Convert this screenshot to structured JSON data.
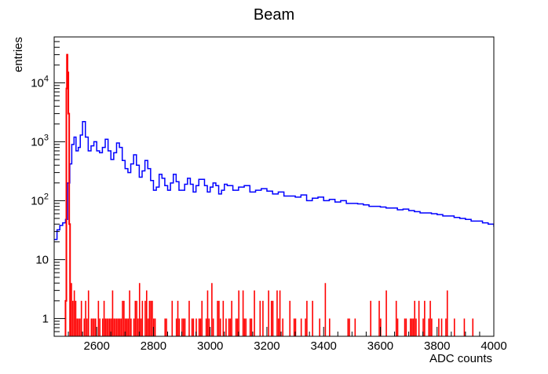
{
  "chart_data": {
    "type": "histogram",
    "title": "Beam",
    "xlabel": "ADC counts",
    "ylabel": "entries",
    "xlim": [
      2450,
      4000
    ],
    "ylim": [
      0.5,
      60000
    ],
    "y_scale": "log",
    "x_ticks": [
      {
        "value": 2600,
        "label": "2600"
      },
      {
        "value": 2800,
        "label": "2800"
      },
      {
        "value": 3000,
        "label": "3000"
      },
      {
        "value": 3200,
        "label": "3200"
      },
      {
        "value": 3400,
        "label": "3400"
      },
      {
        "value": 3600,
        "label": "3600"
      },
      {
        "value": 3800,
        "label": "3800"
      },
      {
        "value": 4000,
        "label": "4000"
      }
    ],
    "y_ticks": [
      {
        "value": 1,
        "base": "1",
        "exp": ""
      },
      {
        "value": 10,
        "base": "10",
        "exp": ""
      },
      {
        "value": 100,
        "base": "10",
        "exp": "2"
      },
      {
        "value": 1000,
        "base": "10",
        "exp": "3"
      },
      {
        "value": 10000,
        "base": "10",
        "exp": "4"
      }
    ],
    "grid": false,
    "legend": "none",
    "series": [
      {
        "color": "#0000ff",
        "style": "step",
        "x": [
          2450,
          2460,
          2470,
          2480,
          2490,
          2497,
          2505,
          2512,
          2520,
          2527,
          2535,
          2542,
          2550,
          2560,
          2570,
          2580,
          2590,
          2600,
          2610,
          2620,
          2630,
          2640,
          2650,
          2660,
          2670,
          2680,
          2690,
          2700,
          2710,
          2720,
          2730,
          2740,
          2750,
          2760,
          2770,
          2780,
          2790,
          2800,
          2810,
          2820,
          2830,
          2840,
          2850,
          2860,
          2870,
          2880,
          2890,
          2900,
          2910,
          2920,
          2930,
          2940,
          2950,
          2960,
          2970,
          2980,
          2990,
          3000,
          3010,
          3020,
          3030,
          3040,
          3050,
          3060,
          3080,
          3100,
          3120,
          3140,
          3160,
          3180,
          3200,
          3220,
          3240,
          3260,
          3280,
          3300,
          3320,
          3340,
          3360,
          3380,
          3400,
          3420,
          3440,
          3460,
          3480,
          3500,
          3520,
          3540,
          3560,
          3580,
          3600,
          3620,
          3640,
          3660,
          3680,
          3700,
          3720,
          3740,
          3760,
          3780,
          3800,
          3820,
          3840,
          3860,
          3880,
          3900,
          3920,
          3940,
          3960,
          3980,
          4000
        ],
        "y": [
          22,
          32,
          38,
          42,
          48,
          200,
          420,
          900,
          1200,
          700,
          800,
          1300,
          2200,
          1200,
          700,
          850,
          1000,
          700,
          650,
          800,
          1100,
          700,
          500,
          650,
          950,
          800,
          480,
          350,
          300,
          420,
          600,
          400,
          250,
          320,
          480,
          350,
          220,
          150,
          170,
          280,
          240,
          180,
          150,
          200,
          280,
          210,
          150,
          150,
          190,
          240,
          190,
          140,
          180,
          230,
          230,
          180,
          140,
          170,
          200,
          180,
          130,
          150,
          190,
          180,
          150,
          170,
          180,
          140,
          150,
          160,
          145,
          130,
          140,
          120,
          120,
          115,
          125,
          100,
          110,
          115,
          100,
          105,
          95,
          100,
          90,
          90,
          88,
          85,
          80,
          80,
          78,
          75,
          75,
          70,
          72,
          68,
          65,
          62,
          62,
          60,
          58,
          55,
          55,
          52,
          50,
          48,
          45,
          45,
          42,
          40,
          36
        ]
      },
      {
        "color": "#ff0000",
        "style": "step",
        "x": [
          2490,
          2493,
          2495,
          2497,
          2500,
          2503,
          2506
        ],
        "y": [
          2,
          8000,
          30000,
          15000,
          3000,
          40,
          3
        ]
      }
    ],
    "red_noise": {
      "x_min": 2506,
      "x_max": 3995,
      "bin": 5,
      "values_seen": [
        1,
        2,
        3,
        4
      ]
    }
  }
}
